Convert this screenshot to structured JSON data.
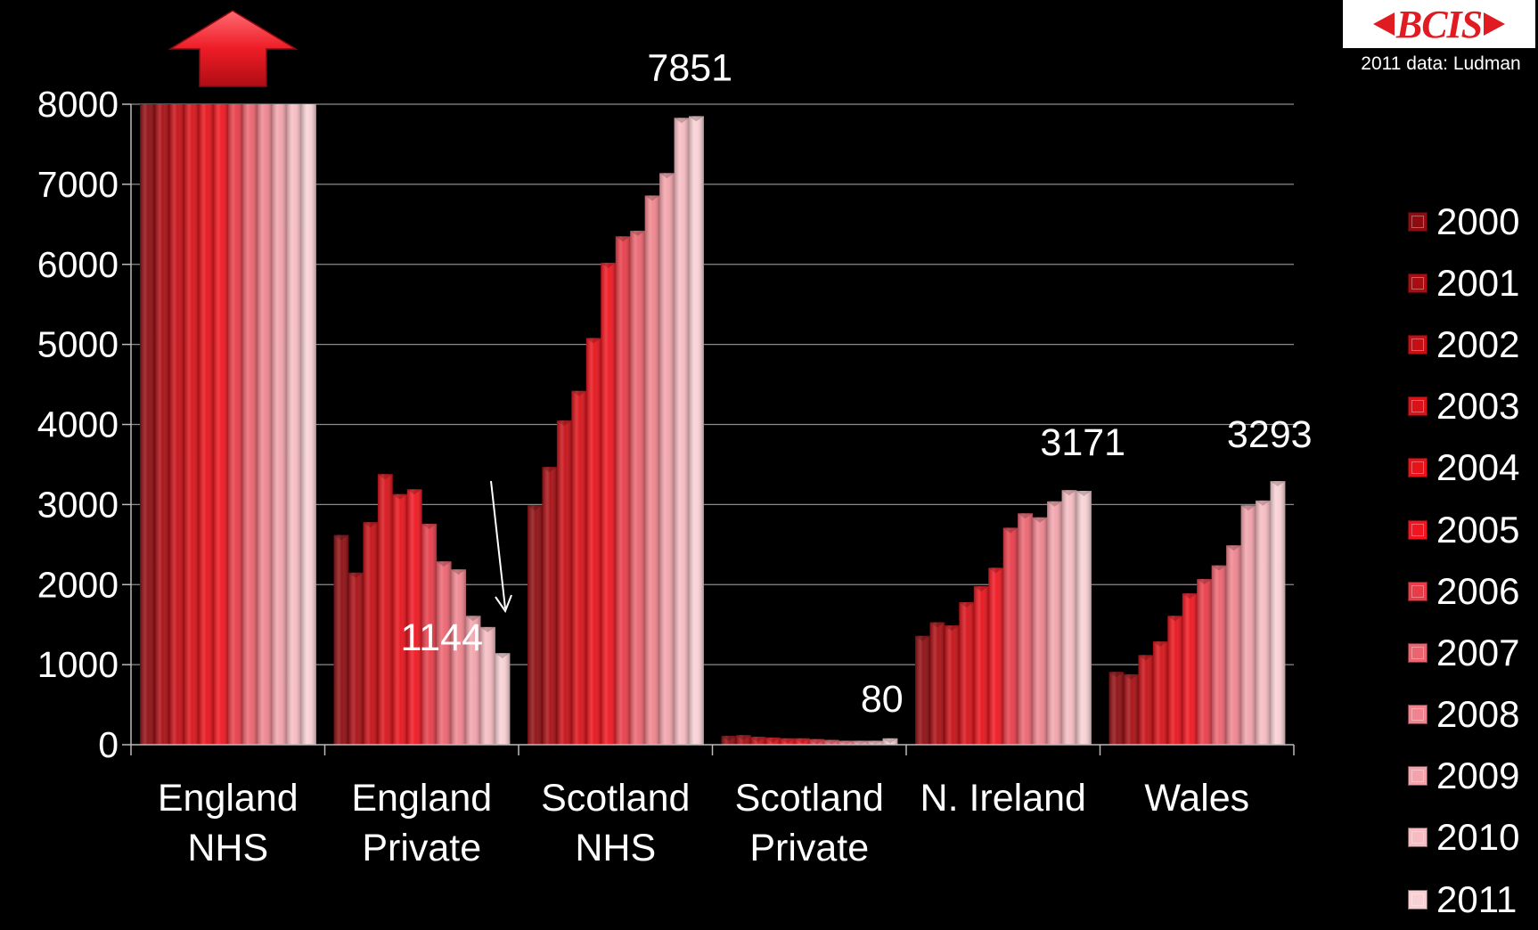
{
  "logo": {
    "text": "BCIS"
  },
  "source_note": "2011 data: Ludman",
  "chart_data": {
    "type": "bar",
    "categories": [
      [
        "England",
        "NHS"
      ],
      [
        "England",
        "Private"
      ],
      [
        "Scotland",
        "NHS"
      ],
      [
        "Scotland",
        "Private"
      ],
      [
        "N. Ireland",
        ""
      ],
      [
        "Wales",
        ""
      ]
    ],
    "series_names": [
      "2000",
      "2001",
      "2002",
      "2003",
      "2004",
      "2005",
      "2006",
      "2007",
      "2008",
      "2009",
      "2010",
      "2011"
    ],
    "series_colors": [
      "#8e0c10",
      "#a80d12",
      "#c60f15",
      "#d81218",
      "#e8121a",
      "#f01520",
      "#e83c48",
      "#ec6470",
      "#f0848e",
      "#f3a3ab",
      "#f6bcc2",
      "#f8d0d4"
    ],
    "values": [
      [
        8000,
        8000,
        8000,
        8000,
        8000,
        8000,
        8000,
        8000,
        8000,
        8000,
        8000,
        8000
      ],
      [
        2620,
        2150,
        2780,
        3380,
        3130,
        3190,
        2760,
        2290,
        2190,
        1610,
        1470,
        1144
      ],
      [
        2990,
        3470,
        4050,
        4420,
        5080,
        6020,
        6350,
        6420,
        6860,
        7140,
        7830,
        7851
      ],
      [
        110,
        120,
        100,
        90,
        80,
        80,
        70,
        60,
        50,
        50,
        50,
        80
      ],
      [
        1360,
        1530,
        1490,
        1780,
        1980,
        2210,
        2710,
        2890,
        2840,
        3040,
        3180,
        3171
      ],
      [
        910,
        880,
        1120,
        1290,
        1610,
        1890,
        2070,
        2240,
        2490,
        2990,
        3050,
        3293
      ]
    ],
    "data_labels": [
      "",
      "1144",
      "7851",
      "80",
      "3171",
      "3293"
    ],
    "yticks": [
      0,
      1000,
      2000,
      3000,
      4000,
      5000,
      6000,
      7000,
      8000
    ],
    "ylim": [
      0,
      8000
    ],
    "grid": true,
    "legend_position": "right"
  }
}
